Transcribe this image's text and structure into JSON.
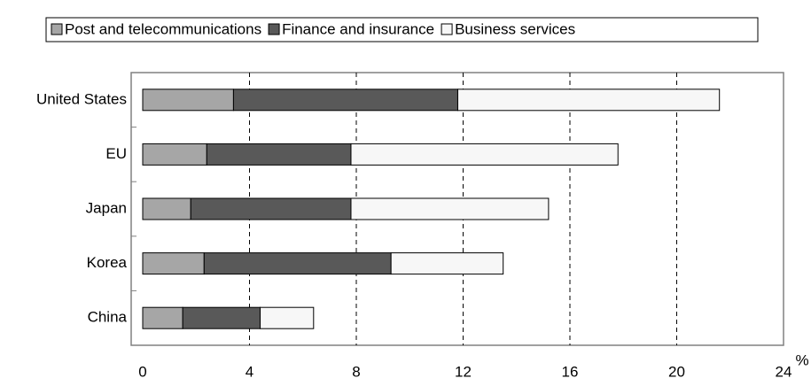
{
  "chart_data": {
    "type": "stacked_hbar",
    "x_label": "%",
    "categories": [
      "United States",
      "EU",
      "Japan",
      "Korea",
      "China"
    ],
    "series": [
      {
        "name": "Post and telecommunications",
        "color": "#a6a6a6",
        "values": [
          3.4,
          2.4,
          1.8,
          2.3,
          1.5
        ]
      },
      {
        "name": "Finance and insurance",
        "color": "#595959",
        "values": [
          8.4,
          5.4,
          6.0,
          7.0,
          2.9
        ]
      },
      {
        "name": "Business services",
        "color": "#f7f7f7",
        "values": [
          9.8,
          10.0,
          7.4,
          4.2,
          2.0
        ]
      }
    ],
    "xlim": [
      0,
      24
    ],
    "xticks": [
      0,
      4,
      8,
      12,
      16,
      20,
      24
    ],
    "grid": true
  }
}
